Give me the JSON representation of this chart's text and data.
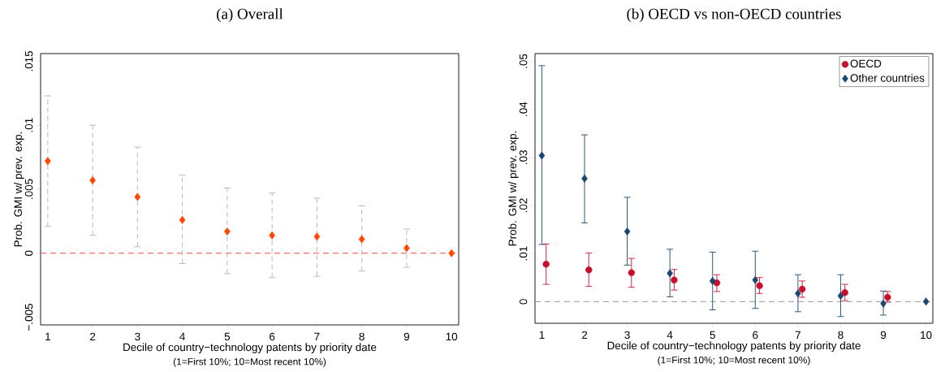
{
  "chart_data": [
    {
      "type": "scatter",
      "title": "(a) Overall",
      "xlabel": "Decile of country−technology patents by priority date",
      "ylabel": "Prob. GMI w/ prev. exp.",
      "annotations": [
        "(1=First 10%; 10=Most recent 10%)"
      ],
      "x": [
        1,
        2,
        3,
        4,
        5,
        6,
        7,
        8,
        9,
        10
      ],
      "values": [
        0.0072,
        0.0057,
        0.0044,
        0.0026,
        0.0017,
        0.0014,
        0.0013,
        0.0011,
        0.0004,
        0
      ],
      "errors": [
        [
          0.0021,
          0.0123
        ],
        [
          0.0014,
          0.01
        ],
        [
          0.0005,
          0.0083
        ],
        [
          -0.0008,
          0.0061
        ],
        [
          -0.0016,
          0.0051
        ],
        [
          -0.0019,
          0.0047
        ],
        [
          -0.0018,
          0.0043
        ],
        [
          -0.0014,
          0.0037
        ],
        [
          -0.0011,
          0.0019
        ],
        null
      ],
      "color": "#ff4500",
      "marker": "diamond",
      "xlim": [
        0.84,
        10.16
      ],
      "ylim": [
        -0.0056,
        0.0156
      ],
      "xticks": [
        1,
        2,
        3,
        4,
        5,
        6,
        7,
        8,
        9,
        10
      ],
      "yticks": [
        {
          "value": -0.005,
          "label": "−.005"
        },
        {
          "value": 0,
          "label": "0"
        },
        {
          "value": 0.005,
          "label": ".005"
        },
        {
          "value": 0.01,
          "label": ".01"
        },
        {
          "value": 0.015,
          "label": ".015"
        }
      ],
      "ref_lines": [
        {
          "axis": "y",
          "value": 0,
          "color": "#ff4040",
          "line_style": "dashed"
        }
      ],
      "grid": false,
      "legend": false
    },
    {
      "type": "scatter",
      "title": "(b) OECD vs non-OECD countries",
      "xlabel": "Decile of country−technology patents by priority date",
      "ylabel": "Prob. GMI w/ prev. exp.",
      "annotations": [
        "(1=First 10%; 10=Most recent 10%)"
      ],
      "series": [
        {
          "name": "OECD",
          "color": "#c8102e",
          "marker": "circle",
          "x": [
            1.1,
            2.1,
            3.1,
            4.1,
            5.1,
            6.1,
            7.1,
            8.1,
            9.1
          ],
          "values": [
            0.0078,
            0.0066,
            0.006,
            0.0045,
            0.0039,
            0.0033,
            0.0026,
            0.0019,
            0.0009
          ],
          "errors": [
            [
              0.0036,
              0.012
            ],
            [
              0.0032,
              0.0101
            ],
            [
              0.003,
              0.009
            ],
            [
              0.0024,
              0.0067
            ],
            [
              0.0021,
              0.0056
            ],
            [
              0.0017,
              0.005
            ],
            [
              0.0009,
              0.0043
            ],
            [
              0.0002,
              0.0036
            ],
            [
              -0.0001,
              0.0021
            ]
          ]
        },
        {
          "name": "Other countries",
          "color": "#1a476f",
          "marker": "diamond",
          "x": [
            1,
            2,
            3,
            4,
            5,
            6,
            7,
            8,
            9,
            10
          ],
          "values": [
            0.0304,
            0.0256,
            0.0146,
            0.0059,
            0.0043,
            0.0045,
            0.0017,
            0.0012,
            -0.0004,
            0
          ],
          "errors": [
            [
              0.0119,
              0.0491
            ],
            [
              0.0164,
              0.0347
            ],
            [
              0.0076,
              0.0217
            ],
            [
              0.001,
              0.0109
            ],
            [
              -0.0017,
              0.0103
            ],
            [
              -0.0014,
              0.0105
            ],
            [
              -0.0021,
              0.0056
            ],
            [
              -0.0031,
              0.0056
            ],
            [
              -0.0028,
              0.0022
            ],
            null
          ]
        }
      ],
      "xlim": [
        0.84,
        10.16
      ],
      "ylim": [
        -0.0045,
        0.0516
      ],
      "xticks": [
        1,
        2,
        3,
        4,
        5,
        6,
        7,
        8,
        9,
        10
      ],
      "yticks": [
        {
          "value": 0,
          "label": "0"
        },
        {
          "value": 0.01,
          "label": ".01"
        },
        {
          "value": 0.02,
          "label": ".02"
        },
        {
          "value": 0.03,
          "label": ".03"
        },
        {
          "value": 0.04,
          "label": ".04"
        },
        {
          "value": 0.05,
          "label": ".05"
        }
      ],
      "ref_lines": [
        {
          "axis": "y",
          "value": 0,
          "color": "#999999",
          "line_style": "dashed"
        }
      ],
      "grid": false,
      "legend": "top right"
    }
  ]
}
